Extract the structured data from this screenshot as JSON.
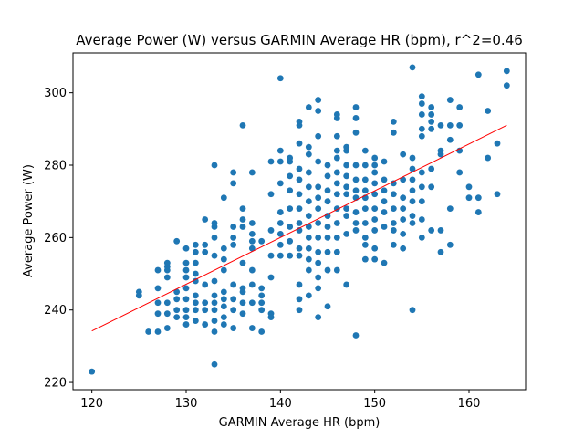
{
  "chart_data": {
    "type": "scatter",
    "title": "Average Power (W) versus GARMIN Average HR (bpm), r^2=0.46",
    "xlabel": "GARMIN Average HR (bpm)",
    "ylabel": "Average Power (W)",
    "xlim": [
      118,
      166
    ],
    "ylim": [
      218,
      311
    ],
    "xticks": [
      120,
      130,
      140,
      150,
      160
    ],
    "yticks": [
      220,
      240,
      260,
      280,
      300
    ],
    "grid": false,
    "point_color": "#1f77b4",
    "fit_color": "#ff0000",
    "fit_line": {
      "x": [
        120,
        164
      ],
      "y": [
        234.2,
        291
      ]
    },
    "points": [
      [
        120,
        223
      ],
      [
        125,
        244
      ],
      [
        125,
        245
      ],
      [
        126,
        234
      ],
      [
        127,
        234
      ],
      [
        127,
        239
      ],
      [
        127,
        242
      ],
      [
        127,
        246
      ],
      [
        127,
        251
      ],
      [
        128,
        235
      ],
      [
        128,
        239
      ],
      [
        128,
        242
      ],
      [
        128,
        249
      ],
      [
        128,
        251
      ],
      [
        128,
        252
      ],
      [
        128,
        253
      ],
      [
        129,
        238
      ],
      [
        129,
        240
      ],
      [
        129,
        243
      ],
      [
        129,
        245
      ],
      [
        129,
        259
      ],
      [
        130,
        236
      ],
      [
        130,
        238
      ],
      [
        130,
        240
      ],
      [
        130,
        243
      ],
      [
        130,
        246
      ],
      [
        130,
        249
      ],
      [
        130,
        251
      ],
      [
        130,
        253
      ],
      [
        130,
        257
      ],
      [
        131,
        237
      ],
      [
        131,
        240
      ],
      [
        131,
        242
      ],
      [
        131,
        244
      ],
      [
        131,
        248
      ],
      [
        131,
        250
      ],
      [
        131,
        253
      ],
      [
        131,
        256
      ],
      [
        131,
        258
      ],
      [
        132,
        236
      ],
      [
        132,
        240
      ],
      [
        132,
        242
      ],
      [
        132,
        247
      ],
      [
        132,
        256
      ],
      [
        132,
        258
      ],
      [
        132,
        265
      ],
      [
        133,
        225
      ],
      [
        133,
        234
      ],
      [
        133,
        237
      ],
      [
        133,
        240
      ],
      [
        133,
        242
      ],
      [
        133,
        244
      ],
      [
        133,
        248
      ],
      [
        133,
        255
      ],
      [
        133,
        260
      ],
      [
        133,
        263
      ],
      [
        133,
        264
      ],
      [
        133,
        280
      ],
      [
        134,
        236
      ],
      [
        134,
        238
      ],
      [
        134,
        241
      ],
      [
        134,
        243
      ],
      [
        134,
        245
      ],
      [
        134,
        251
      ],
      [
        134,
        254
      ],
      [
        134,
        257
      ],
      [
        134,
        271
      ],
      [
        135,
        235
      ],
      [
        135,
        240
      ],
      [
        135,
        243
      ],
      [
        135,
        247
      ],
      [
        135,
        258
      ],
      [
        135,
        260
      ],
      [
        135,
        263
      ],
      [
        135,
        275
      ],
      [
        135,
        278
      ],
      [
        136,
        239
      ],
      [
        136,
        242
      ],
      [
        136,
        245
      ],
      [
        136,
        246
      ],
      [
        136,
        253
      ],
      [
        136,
        263
      ],
      [
        136,
        265
      ],
      [
        136,
        268
      ],
      [
        136,
        291
      ],
      [
        137,
        235
      ],
      [
        137,
        242
      ],
      [
        137,
        247
      ],
      [
        137,
        251
      ],
      [
        137,
        257
      ],
      [
        137,
        259
      ],
      [
        137,
        261
      ],
      [
        137,
        264
      ],
      [
        137,
        278
      ],
      [
        138,
        234
      ],
      [
        138,
        240
      ],
      [
        138,
        242
      ],
      [
        138,
        244
      ],
      [
        138,
        246
      ],
      [
        138,
        259
      ],
      [
        139,
        238
      ],
      [
        139,
        239
      ],
      [
        139,
        249
      ],
      [
        139,
        255
      ],
      [
        139,
        262
      ],
      [
        139,
        272
      ],
      [
        139,
        281
      ],
      [
        140,
        255
      ],
      [
        140,
        258
      ],
      [
        140,
        261
      ],
      [
        140,
        264
      ],
      [
        140,
        267
      ],
      [
        140,
        275
      ],
      [
        140,
        281
      ],
      [
        140,
        284
      ],
      [
        140,
        304
      ],
      [
        141,
        255
      ],
      [
        141,
        259
      ],
      [
        141,
        263
      ],
      [
        141,
        268
      ],
      [
        141,
        273
      ],
      [
        141,
        277
      ],
      [
        141,
        281
      ],
      [
        141,
        282
      ],
      [
        142,
        240
      ],
      [
        142,
        243
      ],
      [
        142,
        247
      ],
      [
        142,
        255
      ],
      [
        142,
        257
      ],
      [
        142,
        262
      ],
      [
        142,
        264
      ],
      [
        142,
        268
      ],
      [
        142,
        272
      ],
      [
        142,
        276
      ],
      [
        142,
        279
      ],
      [
        142,
        286
      ],
      [
        142,
        291
      ],
      [
        142,
        292
      ],
      [
        143,
        244
      ],
      [
        143,
        251
      ],
      [
        143,
        254
      ],
      [
        143,
        257
      ],
      [
        143,
        260
      ],
      [
        143,
        263
      ],
      [
        143,
        266
      ],
      [
        143,
        270
      ],
      [
        143,
        274
      ],
      [
        143,
        278
      ],
      [
        143,
        283
      ],
      [
        143,
        285
      ],
      [
        143,
        296
      ],
      [
        144,
        238
      ],
      [
        144,
        246
      ],
      [
        144,
        249
      ],
      [
        144,
        253
      ],
      [
        144,
        256
      ],
      [
        144,
        260
      ],
      [
        144,
        264
      ],
      [
        144,
        268
      ],
      [
        144,
        271
      ],
      [
        144,
        274
      ],
      [
        144,
        281
      ],
      [
        144,
        288
      ],
      [
        144,
        295
      ],
      [
        144,
        298
      ],
      [
        145,
        241
      ],
      [
        145,
        251
      ],
      [
        145,
        256
      ],
      [
        145,
        260
      ],
      [
        145,
        263
      ],
      [
        145,
        266
      ],
      [
        145,
        270
      ],
      [
        145,
        273
      ],
      [
        145,
        277
      ],
      [
        145,
        280
      ],
      [
        146,
        251
      ],
      [
        146,
        256
      ],
      [
        146,
        260
      ],
      [
        146,
        264
      ],
      [
        146,
        268
      ],
      [
        146,
        272
      ],
      [
        146,
        275
      ],
      [
        146,
        278
      ],
      [
        146,
        282
      ],
      [
        146,
        284
      ],
      [
        146,
        288
      ],
      [
        146,
        293
      ],
      [
        146,
        294
      ],
      [
        147,
        247
      ],
      [
        147,
        261
      ],
      [
        147,
        266
      ],
      [
        147,
        268
      ],
      [
        147,
        272
      ],
      [
        147,
        274
      ],
      [
        147,
        277
      ],
      [
        147,
        280
      ],
      [
        147,
        284
      ],
      [
        147,
        285
      ],
      [
        148,
        233
      ],
      [
        148,
        262
      ],
      [
        148,
        264
      ],
      [
        148,
        267
      ],
      [
        148,
        271
      ],
      [
        148,
        273
      ],
      [
        148,
        276
      ],
      [
        148,
        280
      ],
      [
        148,
        289
      ],
      [
        148,
        293
      ],
      [
        148,
        296
      ],
      [
        149,
        254
      ],
      [
        149,
        258
      ],
      [
        149,
        260
      ],
      [
        149,
        264
      ],
      [
        149,
        268
      ],
      [
        149,
        271
      ],
      [
        149,
        273
      ],
      [
        149,
        276
      ],
      [
        149,
        280
      ],
      [
        149,
        284
      ],
      [
        150,
        254
      ],
      [
        150,
        257
      ],
      [
        150,
        262
      ],
      [
        150,
        265
      ],
      [
        150,
        268
      ],
      [
        150,
        272
      ],
      [
        150,
        275
      ],
      [
        150,
        278
      ],
      [
        150,
        280
      ],
      [
        150,
        282
      ],
      [
        151,
        253
      ],
      [
        151,
        263
      ],
      [
        151,
        267
      ],
      [
        151,
        270
      ],
      [
        151,
        273
      ],
      [
        151,
        276
      ],
      [
        151,
        281
      ],
      [
        152,
        258
      ],
      [
        152,
        262
      ],
      [
        152,
        264
      ],
      [
        152,
        268
      ],
      [
        152,
        272
      ],
      [
        152,
        275
      ],
      [
        152,
        289
      ],
      [
        152,
        292
      ],
      [
        153,
        257
      ],
      [
        153,
        261
      ],
      [
        153,
        265
      ],
      [
        153,
        268
      ],
      [
        153,
        271
      ],
      [
        153,
        276
      ],
      [
        153,
        283
      ],
      [
        154,
        240
      ],
      [
        154,
        264
      ],
      [
        154,
        266
      ],
      [
        154,
        270
      ],
      [
        154,
        273
      ],
      [
        154,
        276
      ],
      [
        154,
        279
      ],
      [
        154,
        282
      ],
      [
        154,
        307
      ],
      [
        155,
        260
      ],
      [
        155,
        265
      ],
      [
        155,
        270
      ],
      [
        155,
        274
      ],
      [
        155,
        278
      ],
      [
        155,
        288
      ],
      [
        155,
        290
      ],
      [
        155,
        294
      ],
      [
        155,
        297
      ],
      [
        155,
        299
      ],
      [
        156,
        262
      ],
      [
        156,
        274
      ],
      [
        156,
        279
      ],
      [
        156,
        290
      ],
      [
        156,
        292
      ],
      [
        156,
        294
      ],
      [
        156,
        296
      ],
      [
        157,
        256
      ],
      [
        157,
        262
      ],
      [
        157,
        283
      ],
      [
        157,
        284
      ],
      [
        157,
        291
      ],
      [
        158,
        258
      ],
      [
        158,
        268
      ],
      [
        158,
        287
      ],
      [
        158,
        291
      ],
      [
        158,
        298
      ],
      [
        159,
        278
      ],
      [
        159,
        284
      ],
      [
        159,
        291
      ],
      [
        159,
        296
      ],
      [
        160,
        271
      ],
      [
        160,
        274
      ],
      [
        161,
        267
      ],
      [
        161,
        271
      ],
      [
        161,
        305
      ],
      [
        162,
        282
      ],
      [
        162,
        295
      ],
      [
        163,
        272
      ],
      [
        163,
        286
      ],
      [
        164,
        302
      ],
      [
        164,
        306
      ]
    ]
  }
}
